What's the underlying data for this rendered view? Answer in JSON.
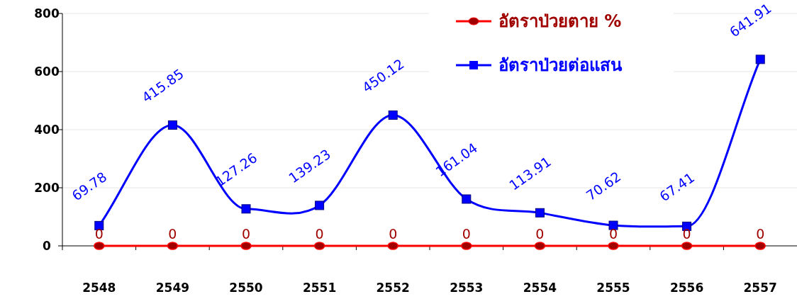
{
  "chart_data": {
    "type": "line",
    "categories": [
      "2548",
      "2549",
      "2550",
      "2551",
      "2552",
      "2553",
      "2554",
      "2555",
      "2556",
      "2557"
    ],
    "series": [
      {
        "name": "อัตราป่วยตาย %",
        "color": "#ff0000",
        "marker": "circle",
        "values": [
          0,
          0,
          0,
          0,
          0,
          0,
          0,
          0,
          0,
          0
        ]
      },
      {
        "name": "อัตราป่วยต่อแสน",
        "color": "#0000ff",
        "marker": "square",
        "values": [
          69.78,
          415.85,
          127.26,
          139.23,
          450.12,
          161.04,
          113.91,
          70.62,
          67.41,
          641.91
        ]
      }
    ],
    "ylim": [
      0,
      800
    ],
    "yticks": [
      0,
      200,
      400,
      600,
      800
    ],
    "grid": "y",
    "legend": "top right",
    "data_labels": true,
    "line_style": "solid"
  }
}
